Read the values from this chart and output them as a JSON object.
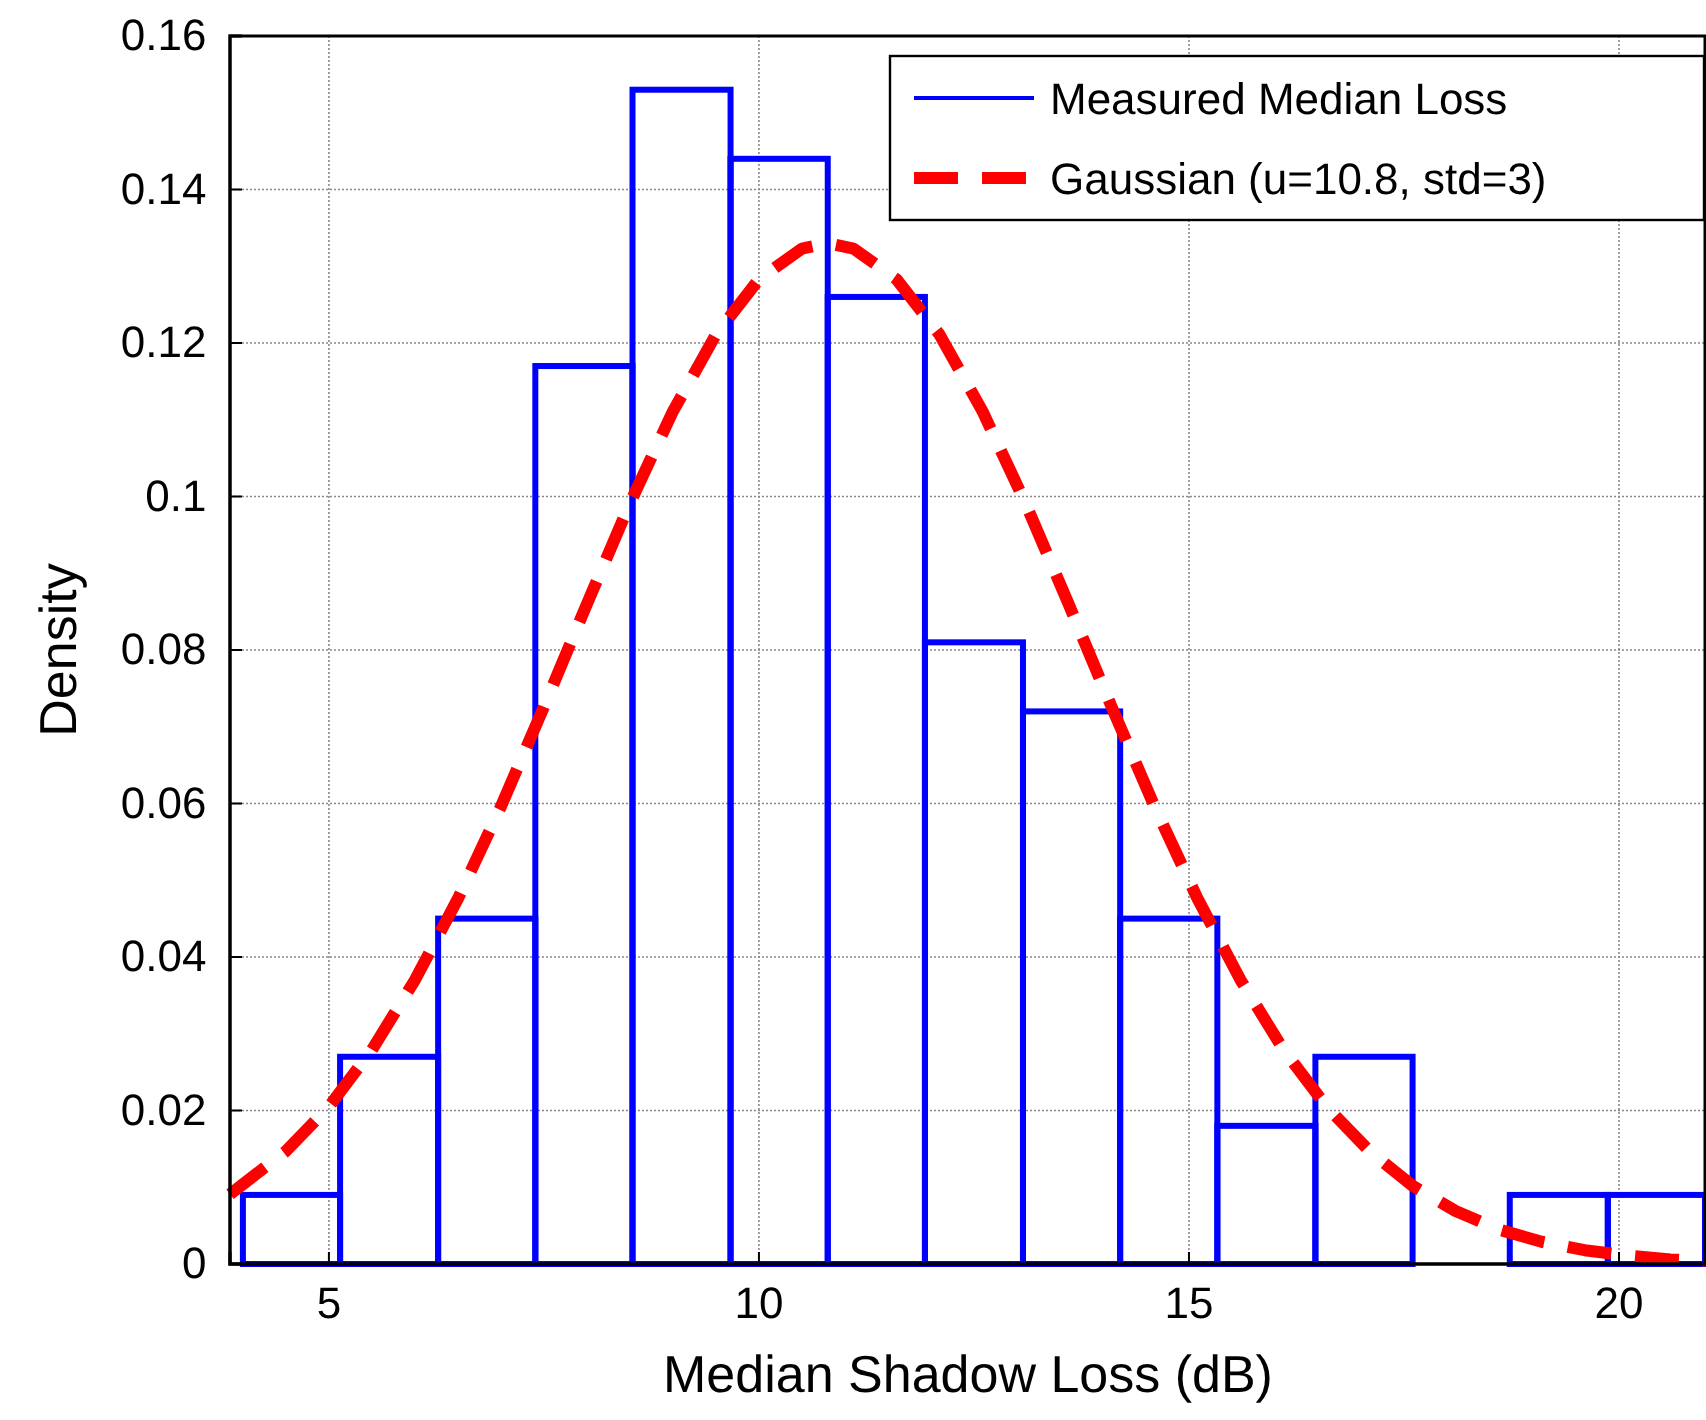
{
  "chart_data": {
    "type": "histogram",
    "xlabel": "Median Shadow Loss (dB)",
    "ylabel": "Density",
    "bins": [
      4,
      5.13,
      6.27,
      7.4,
      8.53,
      9.67,
      10.8,
      11.93,
      13.07,
      14.2,
      15.33,
      16.47,
      17.6,
      18.73,
      19.87,
      21
    ],
    "series": [
      {
        "name": "Measured Median Loss",
        "color": "#0000ff",
        "values": [
          0.009,
          0.027,
          0.045,
          0.117,
          0.153,
          0.144,
          0.126,
          0.081,
          0.072,
          0.045,
          0.018,
          0.027,
          0,
          0.009,
          0.009
        ]
      },
      {
        "name": "Gaussian (u=10.8, std=3)",
        "type": "line",
        "color": "#ff0000",
        "line_style": "dashed",
        "x": [
          3.85,
          4.5,
          5,
          5.5,
          6,
          6.5,
          7,
          7.5,
          8,
          8.5,
          9,
          9.5,
          10,
          10.5,
          10.8,
          11.1,
          11.6,
          12.1,
          12.6,
          13.1,
          13.6,
          14.1,
          14.6,
          15.1,
          15.6,
          16.1,
          16.6,
          17.1,
          17.6,
          18.1,
          18.6,
          19.1,
          19.6,
          20.1,
          20.6,
          21
        ],
        "values": [
          0.0091,
          0.0147,
          0.0205,
          0.0279,
          0.037,
          0.0476,
          0.0596,
          0.0726,
          0.086,
          0.0991,
          0.1111,
          0.1211,
          0.1283,
          0.1323,
          0.133,
          0.1323,
          0.1283,
          0.1211,
          0.1111,
          0.0991,
          0.086,
          0.0726,
          0.0596,
          0.0476,
          0.037,
          0.0279,
          0.0205,
          0.0147,
          0.0102,
          0.0069,
          0.0045,
          0.0029,
          0.0018,
          0.0011,
          0.0006,
          0.0004
        ]
      }
    ],
    "xlim": [
      3.85,
      21
    ],
    "xticks": [
      5,
      10,
      15,
      20
    ],
    "ylim": [
      0,
      0.16
    ],
    "yticks": [
      0,
      0.02,
      0.04,
      0.06,
      0.08,
      0.1,
      0.12,
      0.14,
      0.16
    ],
    "grid": true,
    "legend": "top right"
  }
}
